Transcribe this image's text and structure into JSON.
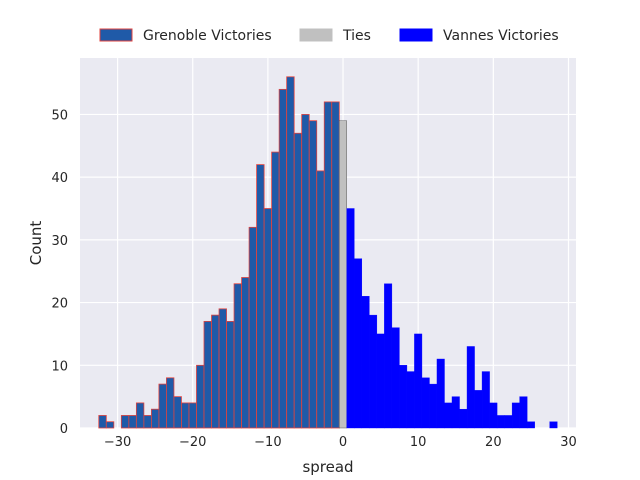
{
  "chart_data": {
    "type": "bar",
    "title": "",
    "xlabel": "spread",
    "ylabel": "Count",
    "xlim": [
      -35,
      31
    ],
    "ylim": [
      0,
      59
    ],
    "xticks": [
      -30,
      -20,
      -10,
      0,
      10,
      20,
      30
    ],
    "yticks": [
      0,
      10,
      20,
      30,
      40,
      50
    ],
    "grid": true,
    "legend_position": "top-center",
    "bin_width": 1,
    "series": [
      {
        "name": "Grenoble Victories",
        "color": "#1f5aa8",
        "edgecolor": "#e0433e",
        "x": [
          -32,
          -31,
          -30,
          -29,
          -28,
          -27,
          -26,
          -25,
          -24,
          -23,
          -22,
          -21,
          -20,
          -19,
          -18,
          -17,
          -16,
          -15,
          -14,
          -13,
          -12,
          -11,
          -10,
          -9,
          -8,
          -7,
          -6,
          -5,
          -4,
          -3,
          -2,
          -1
        ],
        "values": [
          2,
          1,
          0,
          2,
          2,
          4,
          2,
          3,
          7,
          8,
          5,
          4,
          4,
          10,
          17,
          18,
          19,
          17,
          23,
          24,
          32,
          42,
          35,
          44,
          54,
          56,
          47,
          50,
          49,
          41,
          52,
          52
        ]
      },
      {
        "name": "Ties",
        "color": "#c0c0c0",
        "edgecolor": "#404040",
        "x": [
          0
        ],
        "values": [
          49
        ]
      },
      {
        "name": "Vannes Victories",
        "color": "#0000ff",
        "edgecolor": "#0000ff",
        "x": [
          1,
          2,
          3,
          4,
          5,
          6,
          7,
          8,
          9,
          10,
          11,
          12,
          13,
          14,
          15,
          16,
          17,
          18,
          19,
          20,
          21,
          22,
          23,
          24,
          25,
          26,
          27,
          28
        ],
        "values": [
          35,
          27,
          21,
          18,
          15,
          23,
          16,
          10,
          9,
          15,
          8,
          7,
          11,
          4,
          5,
          3,
          13,
          6,
          9,
          4,
          2,
          2,
          4,
          5,
          1,
          0,
          0,
          1
        ]
      }
    ]
  }
}
